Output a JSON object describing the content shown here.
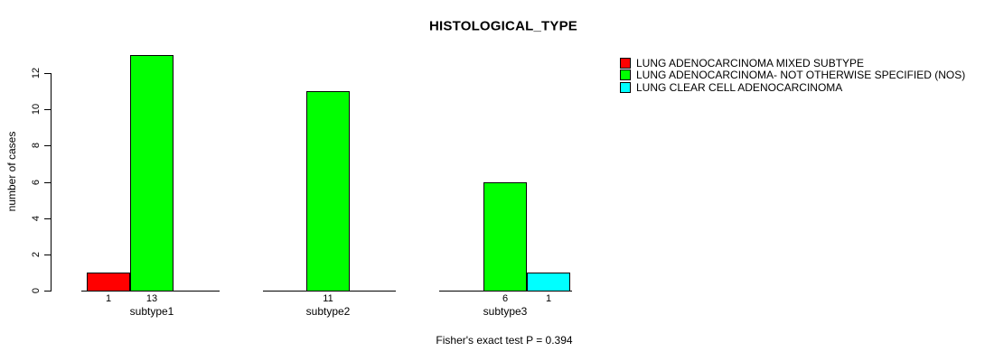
{
  "chart_data": {
    "type": "bar",
    "title": "HISTOLOGICAL_TYPE",
    "xlabel": "",
    "ylabel": "number of cases",
    "categories": [
      "subtype1",
      "subtype2",
      "subtype3"
    ],
    "series": [
      {
        "name": "LUNG ADENOCARCINOMA MIXED SUBTYPE",
        "color": "#ff0000",
        "values": [
          1,
          0,
          0
        ]
      },
      {
        "name": "LUNG ADENOCARCINOMA- NOT OTHERWISE SPECIFIED (NOS)",
        "color": "#00ff00",
        "values": [
          13,
          11,
          6
        ]
      },
      {
        "name": "LUNG CLEAR CELL ADENOCARCINOMA",
        "color": "#00ffff",
        "values": [
          0,
          0,
          1
        ]
      }
    ],
    "yticks": [
      0,
      2,
      4,
      6,
      8,
      10,
      12
    ],
    "ylim": [
      0,
      13
    ],
    "grid": false,
    "legend_position": "right",
    "bar_value_labels": true,
    "annotation": "Fisher's exact test P = 0.394"
  }
}
